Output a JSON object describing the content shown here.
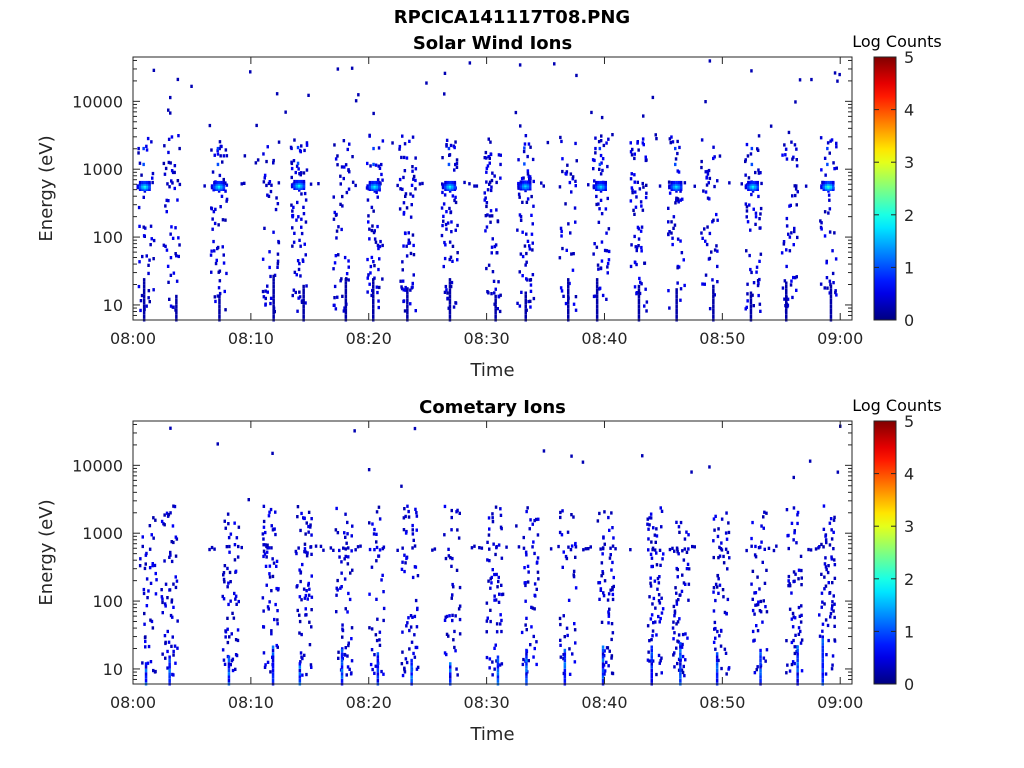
{
  "title": "RPCICA141117T08.PNG",
  "chart_data": [
    {
      "type": "heatmap",
      "title": "Solar Wind Ions",
      "xlabel": "Time",
      "ylabel": "Energy (eV)",
      "x_ticks": [
        "08:00",
        "08:10",
        "08:20",
        "08:30",
        "08:40",
        "08:50",
        "09:00"
      ],
      "x_range_minutes": [
        0,
        61
      ],
      "y_ticks": [
        "10",
        "100",
        "1000",
        "10000"
      ],
      "y_scale": "log",
      "y_range": [
        6,
        45000
      ],
      "colorbar": {
        "label": "Log Counts",
        "ticks": [
          "0",
          "1",
          "2",
          "3",
          "4",
          "5"
        ],
        "range": [
          0,
          5
        ],
        "colormap": "jet"
      },
      "peaks": [
        {
          "t": 0.9,
          "e": 560,
          "v": 2.1
        },
        {
          "t": 7.2,
          "e": 560,
          "v": 2.0
        },
        {
          "t": 14.0,
          "e": 580,
          "v": 2.0
        },
        {
          "t": 20.4,
          "e": 560,
          "v": 2.0
        },
        {
          "t": 26.8,
          "e": 560,
          "v": 2.0
        },
        {
          "t": 33.2,
          "e": 570,
          "v": 1.8
        },
        {
          "t": 39.6,
          "e": 560,
          "v": 1.8
        },
        {
          "t": 46.0,
          "e": 560,
          "v": 1.9
        },
        {
          "t": 52.5,
          "e": 560,
          "v": 2.0
        },
        {
          "t": 58.9,
          "e": 560,
          "v": 2.3
        }
      ],
      "bursts_min": [
        1.0,
        3.2,
        7.2,
        11.6,
        14.0,
        17.6,
        20.4,
        23.2,
        26.8,
        30.4,
        33.2,
        36.8,
        39.6,
        42.8,
        46.0,
        48.8,
        52.5,
        55.6,
        58.9
      ],
      "band_energy_eV": 600,
      "band_level": 0.3,
      "max_level": 2.3
    },
    {
      "type": "heatmap",
      "title": "Cometary Ions",
      "xlabel": "Time",
      "ylabel": "Energy (eV)",
      "x_ticks": [
        "08:00",
        "08:10",
        "08:20",
        "08:30",
        "08:40",
        "08:50",
        "09:00"
      ],
      "x_range_minutes": [
        0,
        61
      ],
      "y_ticks": [
        "10",
        "100",
        "1000",
        "10000"
      ],
      "y_scale": "log",
      "y_range": [
        6,
        45000
      ],
      "colorbar": {
        "label": "Log Counts",
        "ticks": [
          "0",
          "1",
          "2",
          "3",
          "4",
          "5"
        ],
        "range": [
          0,
          5
        ],
        "colormap": "jet"
      },
      "peaks": [],
      "bursts_min": [
        1.2,
        3.0,
        8.2,
        11.6,
        14.4,
        17.8,
        20.6,
        23.4,
        27.0,
        30.6,
        33.6,
        36.8,
        40.0,
        44.2,
        46.4,
        49.8,
        53.0,
        56.0,
        58.8
      ],
      "band_energy_eV": 600,
      "band_level": 0.3,
      "max_level": 1.6
    }
  ]
}
